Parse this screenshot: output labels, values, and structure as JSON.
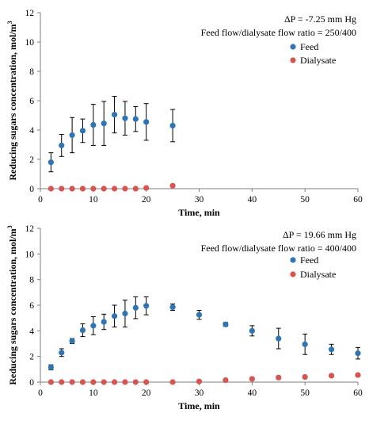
{
  "colors": {
    "feed": "#2E75B6",
    "dialysate": "#D9534F",
    "axis": "#7f7f7f",
    "errorbar": "#000000"
  },
  "chart_data": [
    {
      "type": "scatter",
      "xlabel": "Time, min",
      "ylabel": "Reducing sugars concentration, mol/m³",
      "xlim": [
        0,
        60
      ],
      "ylim": [
        0,
        12
      ],
      "xticks": [
        0,
        10,
        20,
        30,
        40,
        50,
        60
      ],
      "yticks": [
        0,
        2,
        4,
        6,
        8,
        10,
        12
      ],
      "xtick_labels": [
        "0",
        "10",
        "20",
        "30",
        "40",
        "50",
        "60"
      ],
      "ytick_labels": [
        "0",
        "2",
        "4",
        "6",
        "8",
        "10",
        "12"
      ],
      "annotations": [
        "ΔP = -7.25 mm Hg",
        "Feed flow/dialysate flow ratio = 250/400"
      ],
      "legend_position": "top-right",
      "grid": false,
      "series": [
        {
          "name": "Feed",
          "color_key": "feed",
          "x": [
            2,
            4,
            6,
            8,
            10,
            12,
            14,
            16,
            18,
            20,
            25
          ],
          "y": [
            1.8,
            2.95,
            3.65,
            3.95,
            4.35,
            4.45,
            5.05,
            4.8,
            4.75,
            4.55,
            4.3
          ],
          "err": [
            0.65,
            0.75,
            1.2,
            0.8,
            1.4,
            1.5,
            1.25,
            1.15,
            0.85,
            1.25,
            1.1
          ]
        },
        {
          "name": "Dialysate",
          "color_key": "dialysate",
          "x": [
            2,
            4,
            6,
            8,
            10,
            12,
            14,
            16,
            18,
            20,
            25
          ],
          "y": [
            0,
            0,
            0,
            0,
            0,
            0,
            0,
            0,
            0,
            0.05,
            0.2
          ],
          "err": null
        }
      ]
    },
    {
      "type": "scatter",
      "xlabel": "Time, min",
      "ylabel": "Reducing sugars concentration, mol/m³",
      "xlim": [
        0,
        60
      ],
      "ylim": [
        0,
        12
      ],
      "xticks": [
        0,
        10,
        20,
        30,
        40,
        50,
        60
      ],
      "yticks": [
        0,
        2,
        4,
        6,
        8,
        10,
        12
      ],
      "xtick_labels": [
        "0",
        "10",
        "20",
        "30",
        "40",
        "50",
        "60"
      ],
      "ytick_labels": [
        "0",
        "2",
        "4",
        "6",
        "8",
        "10",
        "12"
      ],
      "annotations": [
        "ΔP = 19.66 mm Hg",
        "Feed flow/dialysate flow ratio = 400/400"
      ],
      "legend_position": "top-right",
      "grid": false,
      "series": [
        {
          "name": "Feed",
          "color_key": "feed",
          "x": [
            2,
            4,
            6,
            8,
            10,
            12,
            14,
            16,
            18,
            20,
            25,
            30,
            35,
            40,
            45,
            50,
            55,
            60
          ],
          "y": [
            1.15,
            2.3,
            3.2,
            4.05,
            4.4,
            4.7,
            5.15,
            5.35,
            5.8,
            5.95,
            5.85,
            5.25,
            4.5,
            4.0,
            3.4,
            2.95,
            2.55,
            2.25
          ],
          "err": [
            0.2,
            0.3,
            0.2,
            0.5,
            0.7,
            0.6,
            0.85,
            1.05,
            0.85,
            0.7,
            0.25,
            0.35,
            0.15,
            0.4,
            0.8,
            0.8,
            0.4,
            0.45
          ]
        },
        {
          "name": "Dialysate",
          "color_key": "dialysate",
          "x": [
            2,
            4,
            6,
            8,
            10,
            12,
            14,
            16,
            18,
            20,
            25,
            30,
            35,
            40,
            45,
            50,
            55,
            60
          ],
          "y": [
            0,
            0,
            0,
            0,
            0,
            0,
            0,
            0,
            0,
            0,
            0,
            0.05,
            0.15,
            0.25,
            0.35,
            0.4,
            0.5,
            0.55
          ],
          "err": null
        }
      ]
    }
  ]
}
